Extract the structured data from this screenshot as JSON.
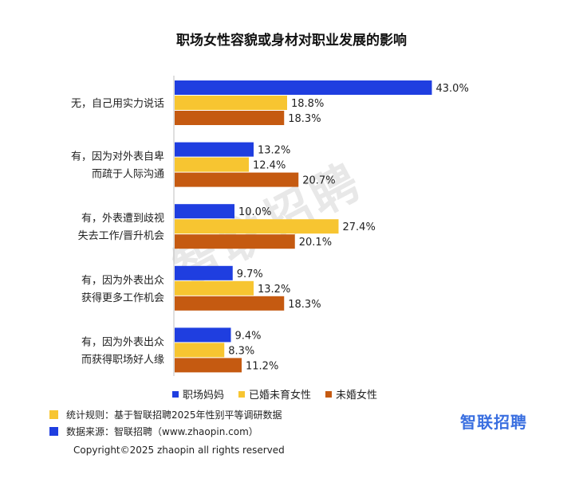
{
  "colors": {
    "series1": "#1f3ee0",
    "series2": "#f7c531",
    "series3": "#c55a11"
  },
  "watermark": "智联招聘",
  "chart_data": {
    "type": "bar",
    "orientation": "horizontal",
    "title": "职场女性容貌或身材对职业发展的影响",
    "categories": [
      [
        "无，自己用实力说话"
      ],
      [
        "有，因为对外表自卑",
        "而疏于人际沟通"
      ],
      [
        "有，外表遭到歧视",
        "失去工作/晋升机会"
      ],
      [
        "有，因为外表出众",
        "获得更多工作机会"
      ],
      [
        "有，因为外表出众",
        "而获得职场好人缘"
      ]
    ],
    "series": [
      {
        "name": "职场妈妈",
        "values": [
          43.0,
          13.2,
          10.0,
          9.7,
          9.4
        ]
      },
      {
        "name": "已婚未育女性",
        "values": [
          18.8,
          12.4,
          27.4,
          13.2,
          8.3
        ]
      },
      {
        "name": "未婚女性",
        "values": [
          18.3,
          20.7,
          20.1,
          18.3,
          11.2
        ]
      }
    ],
    "value_suffix": "%",
    "legend_position": "bottom",
    "grid": false
  },
  "footnotes": {
    "rules": "统计规则：基于智联招聘2025年性别平等调研数据",
    "source": "数据来源：智联招聘（www.zhaopin.com）"
  },
  "brand": "智联招聘",
  "copyright": "Copyright©2025 zhaopin all rights reserved"
}
